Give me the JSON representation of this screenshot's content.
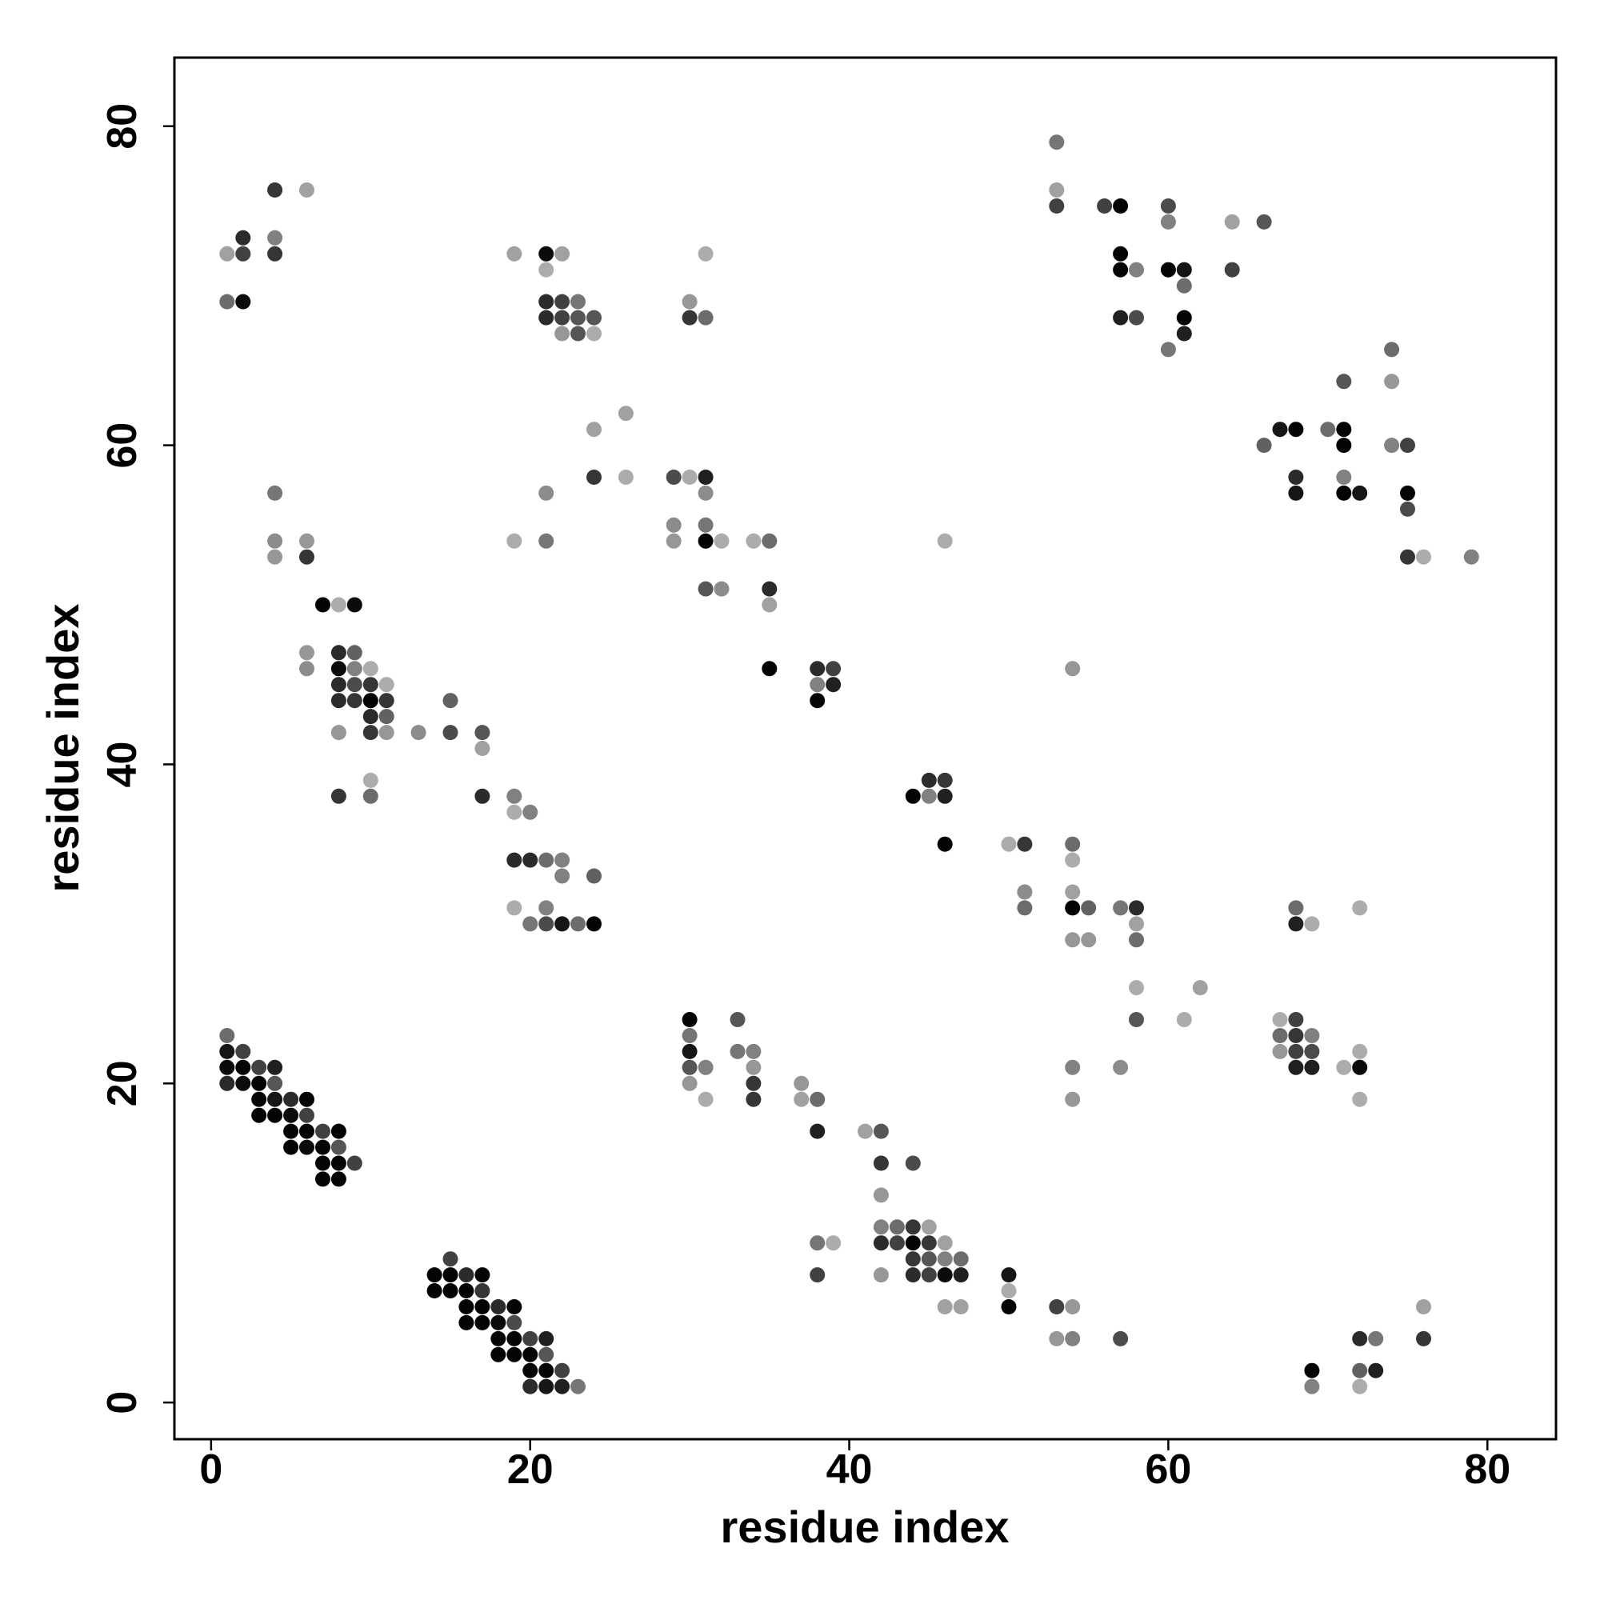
{
  "chart_data": {
    "type": "scatter",
    "title": "",
    "xlabel": "residue index",
    "ylabel": "residue index",
    "xlim": [
      -2.3,
      84.3
    ],
    "ylim": [
      -2.3,
      84.3
    ],
    "xticks": [
      0,
      20,
      40,
      60,
      80
    ],
    "yticks": [
      0,
      20,
      40,
      60,
      80
    ],
    "grid": false,
    "legend": "none",
    "shade_scale": "grayscale, light gray to black",
    "points": [
      [
        1,
        72,
        0.25
      ],
      [
        1,
        69,
        0.5
      ],
      [
        2,
        73,
        0.8
      ],
      [
        2,
        72,
        0.7
      ],
      [
        2,
        69,
        0.95
      ],
      [
        4,
        76,
        0.75
      ],
      [
        4,
        73,
        0.4
      ],
      [
        4,
        72,
        0.75
      ],
      [
        6,
        76,
        0.25
      ],
      [
        21,
        72,
        0.95
      ],
      [
        22,
        72,
        0.25
      ],
      [
        21,
        71,
        0.2
      ],
      [
        19,
        72,
        0.25
      ],
      [
        21,
        69,
        0.8
      ],
      [
        22,
        69,
        0.7
      ],
      [
        23,
        69,
        0.45
      ],
      [
        21,
        68,
        0.8
      ],
      [
        22,
        68,
        0.7
      ],
      [
        23,
        68,
        0.6
      ],
      [
        24,
        68,
        0.6
      ],
      [
        22,
        67,
        0.3
      ],
      [
        23,
        67,
        0.6
      ],
      [
        24,
        67,
        0.2
      ],
      [
        30,
        69,
        0.3
      ],
      [
        30,
        68,
        0.75
      ],
      [
        31,
        68,
        0.5
      ],
      [
        31,
        72,
        0.2
      ],
      [
        53,
        79,
        0.45
      ],
      [
        53,
        76,
        0.25
      ],
      [
        53,
        75,
        0.7
      ],
      [
        56,
        75,
        0.7
      ],
      [
        57,
        75,
        0.98
      ],
      [
        60,
        75,
        0.65
      ],
      [
        60,
        74,
        0.4
      ],
      [
        64,
        74,
        0.25
      ],
      [
        66,
        74,
        0.6
      ],
      [
        57,
        72,
        0.98
      ],
      [
        57,
        71,
        0.98
      ],
      [
        58,
        71,
        0.4
      ],
      [
        60,
        71,
        0.98
      ],
      [
        61,
        71,
        0.9
      ],
      [
        64,
        71,
        0.7
      ],
      [
        61,
        70,
        0.5
      ],
      [
        57,
        68,
        0.85
      ],
      [
        58,
        68,
        0.65
      ],
      [
        61,
        68,
        0.98
      ],
      [
        61,
        67,
        0.85
      ],
      [
        60,
        66,
        0.45
      ],
      [
        74,
        66,
        0.5
      ],
      [
        71,
        64,
        0.6
      ],
      [
        74,
        64,
        0.3
      ],
      [
        67,
        61,
        0.9
      ],
      [
        68,
        61,
        0.98
      ],
      [
        70,
        61,
        0.5
      ],
      [
        71,
        61,
        0.98
      ],
      [
        66,
        60,
        0.55
      ],
      [
        71,
        60,
        0.98
      ],
      [
        74,
        60,
        0.4
      ],
      [
        75,
        60,
        0.7
      ],
      [
        68,
        58,
        0.8
      ],
      [
        71,
        58,
        0.4
      ],
      [
        68,
        57,
        0.9
      ],
      [
        71,
        57,
        0.98
      ],
      [
        72,
        57,
        0.9
      ],
      [
        75,
        57,
        0.98
      ],
      [
        75,
        56,
        0.65
      ],
      [
        75,
        53,
        0.75
      ],
      [
        76,
        53,
        0.2
      ],
      [
        79,
        53,
        0.4
      ],
      [
        4,
        57,
        0.45
      ],
      [
        4,
        54,
        0.35
      ],
      [
        6,
        54,
        0.3
      ],
      [
        4,
        53,
        0.3
      ],
      [
        6,
        53,
        0.75
      ],
      [
        7,
        50,
        0.98
      ],
      [
        8,
        50,
        0.2
      ],
      [
        9,
        50,
        0.95
      ],
      [
        6,
        47,
        0.3
      ],
      [
        8,
        47,
        0.8
      ],
      [
        9,
        47,
        0.55
      ],
      [
        6,
        46,
        0.35
      ],
      [
        8,
        46,
        0.95
      ],
      [
        9,
        46,
        0.4
      ],
      [
        10,
        46,
        0.2
      ],
      [
        8,
        45,
        0.8
      ],
      [
        9,
        45,
        0.65
      ],
      [
        10,
        45,
        0.75
      ],
      [
        11,
        45,
        0.2
      ],
      [
        8,
        44,
        0.8
      ],
      [
        9,
        44,
        0.75
      ],
      [
        10,
        44,
        0.98
      ],
      [
        11,
        44,
        0.75
      ],
      [
        10,
        43,
        0.8
      ],
      [
        11,
        43,
        0.55
      ],
      [
        8,
        42,
        0.3
      ],
      [
        10,
        42,
        0.75
      ],
      [
        11,
        42,
        0.3
      ],
      [
        13,
        42,
        0.35
      ],
      [
        15,
        44,
        0.55
      ],
      [
        15,
        42,
        0.65
      ],
      [
        17,
        42,
        0.6
      ],
      [
        17,
        41,
        0.25
      ],
      [
        8,
        38,
        0.75
      ],
      [
        10,
        39,
        0.2
      ],
      [
        10,
        38,
        0.5
      ],
      [
        17,
        38,
        0.8
      ],
      [
        19,
        38,
        0.4
      ],
      [
        19,
        37,
        0.2
      ],
      [
        20,
        37,
        0.4
      ],
      [
        19,
        34,
        0.8
      ],
      [
        20,
        34,
        0.8
      ],
      [
        21,
        34,
        0.5
      ],
      [
        22,
        34,
        0.4
      ],
      [
        22,
        33,
        0.4
      ],
      [
        24,
        33,
        0.55
      ],
      [
        19,
        31,
        0.2
      ],
      [
        21,
        31,
        0.4
      ],
      [
        20,
        30,
        0.45
      ],
      [
        21,
        30,
        0.65
      ],
      [
        22,
        30,
        0.9
      ],
      [
        23,
        30,
        0.5
      ],
      [
        24,
        30,
        0.98
      ],
      [
        21,
        57,
        0.35
      ],
      [
        19,
        54,
        0.2
      ],
      [
        21,
        54,
        0.45
      ],
      [
        24,
        61,
        0.25
      ],
      [
        24,
        58,
        0.75
      ],
      [
        26,
        62,
        0.25
      ],
      [
        26,
        58,
        0.2
      ],
      [
        29,
        58,
        0.65
      ],
      [
        30,
        58,
        0.2
      ],
      [
        31,
        58,
        0.85
      ],
      [
        31,
        57,
        0.35
      ],
      [
        29,
        55,
        0.35
      ],
      [
        31,
        55,
        0.45
      ],
      [
        29,
        54,
        0.3
      ],
      [
        31,
        54,
        0.98
      ],
      [
        32,
        54,
        0.2
      ],
      [
        34,
        54,
        0.2
      ],
      [
        35,
        54,
        0.5
      ],
      [
        31,
        51,
        0.6
      ],
      [
        32,
        51,
        0.35
      ],
      [
        35,
        51,
        0.8
      ],
      [
        35,
        50,
        0.25
      ],
      [
        35,
        46,
        0.98
      ],
      [
        38,
        46,
        0.8
      ],
      [
        39,
        46,
        0.7
      ],
      [
        38,
        45,
        0.4
      ],
      [
        39,
        45,
        0.85
      ],
      [
        38,
        44,
        0.98
      ],
      [
        44,
        38,
        0.98
      ],
      [
        45,
        39,
        0.8
      ],
      [
        46,
        39,
        0.75
      ],
      [
        45,
        38,
        0.4
      ],
      [
        46,
        38,
        0.85
      ],
      [
        46,
        35,
        0.98
      ],
      [
        46,
        54,
        0.2
      ],
      [
        54,
        46,
        0.3
      ],
      [
        50,
        35,
        0.2
      ],
      [
        51,
        35,
        0.75
      ],
      [
        51,
        32,
        0.35
      ],
      [
        51,
        31,
        0.5
      ],
      [
        54,
        35,
        0.5
      ],
      [
        54,
        34,
        0.2
      ],
      [
        54,
        32,
        0.25
      ],
      [
        54,
        31,
        0.98
      ],
      [
        55,
        31,
        0.55
      ],
      [
        54,
        29,
        0.3
      ],
      [
        55,
        29,
        0.3
      ],
      [
        57,
        31,
        0.45
      ],
      [
        58,
        31,
        0.8
      ],
      [
        58,
        30,
        0.25
      ],
      [
        58,
        29,
        0.5
      ],
      [
        58,
        26,
        0.2
      ],
      [
        58,
        24,
        0.6
      ],
      [
        61,
        24,
        0.2
      ],
      [
        62,
        26,
        0.25
      ],
      [
        68,
        31,
        0.5
      ],
      [
        68,
        30,
        0.85
      ],
      [
        69,
        30,
        0.2
      ],
      [
        72,
        31,
        0.2
      ],
      [
        67,
        24,
        0.2
      ],
      [
        68,
        24,
        0.7
      ],
      [
        67,
        23,
        0.5
      ],
      [
        68,
        23,
        0.75
      ],
      [
        69,
        23,
        0.4
      ],
      [
        67,
        22,
        0.3
      ],
      [
        68,
        22,
        0.7
      ],
      [
        69,
        22,
        0.65
      ],
      [
        68,
        21,
        0.85
      ],
      [
        69,
        21,
        0.85
      ],
      [
        71,
        21,
        0.2
      ],
      [
        72,
        21,
        0.95
      ],
      [
        72,
        22,
        0.2
      ],
      [
        72,
        19,
        0.2
      ],
      [
        54,
        21,
        0.4
      ],
      [
        54,
        19,
        0.3
      ],
      [
        57,
        21,
        0.35
      ],
      [
        30,
        24,
        0.98
      ],
      [
        30,
        23,
        0.45
      ],
      [
        30,
        22,
        0.9
      ],
      [
        30,
        21,
        0.6
      ],
      [
        31,
        21,
        0.4
      ],
      [
        30,
        20,
        0.3
      ],
      [
        31,
        19,
        0.2
      ],
      [
        33,
        24,
        0.6
      ],
      [
        33,
        22,
        0.45
      ],
      [
        34,
        22,
        0.4
      ],
      [
        34,
        21,
        0.3
      ],
      [
        34,
        20,
        0.75
      ],
      [
        34,
        19,
        0.75
      ],
      [
        37,
        20,
        0.3
      ],
      [
        37,
        19,
        0.25
      ],
      [
        38,
        19,
        0.5
      ],
      [
        38,
        17,
        0.85
      ],
      [
        41,
        17,
        0.25
      ],
      [
        42,
        17,
        0.6
      ],
      [
        42,
        15,
        0.75
      ],
      [
        44,
        15,
        0.65
      ],
      [
        42,
        13,
        0.3
      ],
      [
        42,
        11,
        0.4
      ],
      [
        43,
        11,
        0.5
      ],
      [
        44,
        11,
        0.75
      ],
      [
        45,
        11,
        0.25
      ],
      [
        42,
        10,
        0.8
      ],
      [
        43,
        10,
        0.7
      ],
      [
        44,
        10,
        0.98
      ],
      [
        45,
        10,
        0.75
      ],
      [
        46,
        10,
        0.25
      ],
      [
        44,
        9,
        0.75
      ],
      [
        45,
        9,
        0.6
      ],
      [
        46,
        9,
        0.4
      ],
      [
        47,
        9,
        0.5
      ],
      [
        44,
        8,
        0.8
      ],
      [
        45,
        8,
        0.7
      ],
      [
        46,
        8,
        0.95
      ],
      [
        47,
        8,
        0.85
      ],
      [
        42,
        8,
        0.3
      ],
      [
        38,
        10,
        0.45
      ],
      [
        39,
        10,
        0.2
      ],
      [
        38,
        8,
        0.7
      ],
      [
        46,
        6,
        0.25
      ],
      [
        47,
        6,
        0.25
      ],
      [
        50,
        8,
        0.9
      ],
      [
        50,
        7,
        0.2
      ],
      [
        50,
        6,
        0.98
      ],
      [
        53,
        6,
        0.7
      ],
      [
        54,
        6,
        0.3
      ],
      [
        53,
        4,
        0.3
      ],
      [
        54,
        4,
        0.4
      ],
      [
        57,
        4,
        0.65
      ],
      [
        69,
        2,
        0.98
      ],
      [
        69,
        1,
        0.4
      ],
      [
        72,
        4,
        0.8
      ],
      [
        73,
        4,
        0.45
      ],
      [
        72,
        2,
        0.55
      ],
      [
        73,
        2,
        0.85
      ],
      [
        72,
        1,
        0.2
      ],
      [
        76,
        6,
        0.25
      ],
      [
        76,
        4,
        0.75
      ],
      [
        1,
        23,
        0.5
      ],
      [
        1,
        22,
        0.9
      ],
      [
        2,
        22,
        0.7
      ],
      [
        1,
        21,
        0.95
      ],
      [
        2,
        21,
        0.98
      ],
      [
        3,
        21,
        0.7
      ],
      [
        4,
        21,
        0.85
      ],
      [
        1,
        20,
        0.8
      ],
      [
        2,
        20,
        0.95
      ],
      [
        3,
        20,
        0.98
      ],
      [
        4,
        20,
        0.6
      ],
      [
        3,
        19,
        0.98
      ],
      [
        4,
        19,
        0.9
      ],
      [
        5,
        19,
        0.8
      ],
      [
        6,
        19,
        0.98
      ],
      [
        3,
        18,
        0.98
      ],
      [
        4,
        18,
        0.98
      ],
      [
        5,
        18,
        0.95
      ],
      [
        6,
        18,
        0.7
      ],
      [
        5,
        17,
        0.98
      ],
      [
        6,
        17,
        0.98
      ],
      [
        7,
        17,
        0.7
      ],
      [
        8,
        17,
        0.98
      ],
      [
        5,
        16,
        0.98
      ],
      [
        6,
        16,
        0.95
      ],
      [
        7,
        16,
        0.98
      ],
      [
        8,
        16,
        0.6
      ],
      [
        7,
        15,
        0.98
      ],
      [
        8,
        15,
        0.98
      ],
      [
        9,
        15,
        0.7
      ],
      [
        7,
        14,
        0.98
      ],
      [
        8,
        14,
        0.98
      ],
      [
        15,
        9,
        0.7
      ],
      [
        14,
        8,
        0.98
      ],
      [
        15,
        8,
        0.98
      ],
      [
        16,
        8,
        0.8
      ],
      [
        17,
        8,
        0.98
      ],
      [
        14,
        7,
        0.98
      ],
      [
        15,
        7,
        0.98
      ],
      [
        16,
        7,
        0.98
      ],
      [
        17,
        7,
        0.75
      ],
      [
        16,
        6,
        0.98
      ],
      [
        17,
        6,
        0.98
      ],
      [
        18,
        6,
        0.8
      ],
      [
        19,
        6,
        0.98
      ],
      [
        16,
        5,
        0.98
      ],
      [
        17,
        5,
        0.98
      ],
      [
        18,
        5,
        0.95
      ],
      [
        19,
        5,
        0.65
      ],
      [
        18,
        4,
        0.98
      ],
      [
        19,
        4,
        0.98
      ],
      [
        20,
        4,
        0.7
      ],
      [
        21,
        4,
        0.85
      ],
      [
        18,
        3,
        0.98
      ],
      [
        19,
        3,
        0.98
      ],
      [
        20,
        3,
        0.98
      ],
      [
        21,
        3,
        0.6
      ],
      [
        20,
        2,
        0.98
      ],
      [
        21,
        2,
        0.98
      ],
      [
        22,
        2,
        0.7
      ],
      [
        20,
        1,
        0.8
      ],
      [
        21,
        1,
        0.9
      ],
      [
        22,
        1,
        0.85
      ],
      [
        23,
        1,
        0.45
      ]
    ]
  }
}
